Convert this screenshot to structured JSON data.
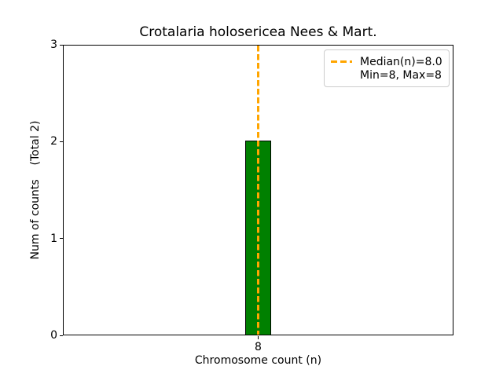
{
  "chart_data": {
    "type": "bar",
    "title": "Crotalaria holosericea Nees & Mart.",
    "xlabel": "Chromosome count (n)",
    "ylabel": "Num of counts    (Total 2)",
    "categories": [
      "8"
    ],
    "values": [
      2
    ],
    "total_counts": 2,
    "xticks": [
      "8"
    ],
    "yticks": [
      "0",
      "1",
      "2",
      "3"
    ],
    "ylim": [
      0,
      3
    ],
    "grid": false,
    "bar_color": "#008000",
    "bar_edge_color": "#000000",
    "median_line": {
      "x": 8.0,
      "style": "dashed",
      "color": "#FFA500"
    },
    "legend": {
      "position": "upper right",
      "entries": [
        {
          "label": "Median(n)=8.0",
          "marker": "dashed-line",
          "color": "#FFA500"
        },
        {
          "label": "Min=8, Max=8",
          "marker": "none"
        }
      ]
    }
  }
}
